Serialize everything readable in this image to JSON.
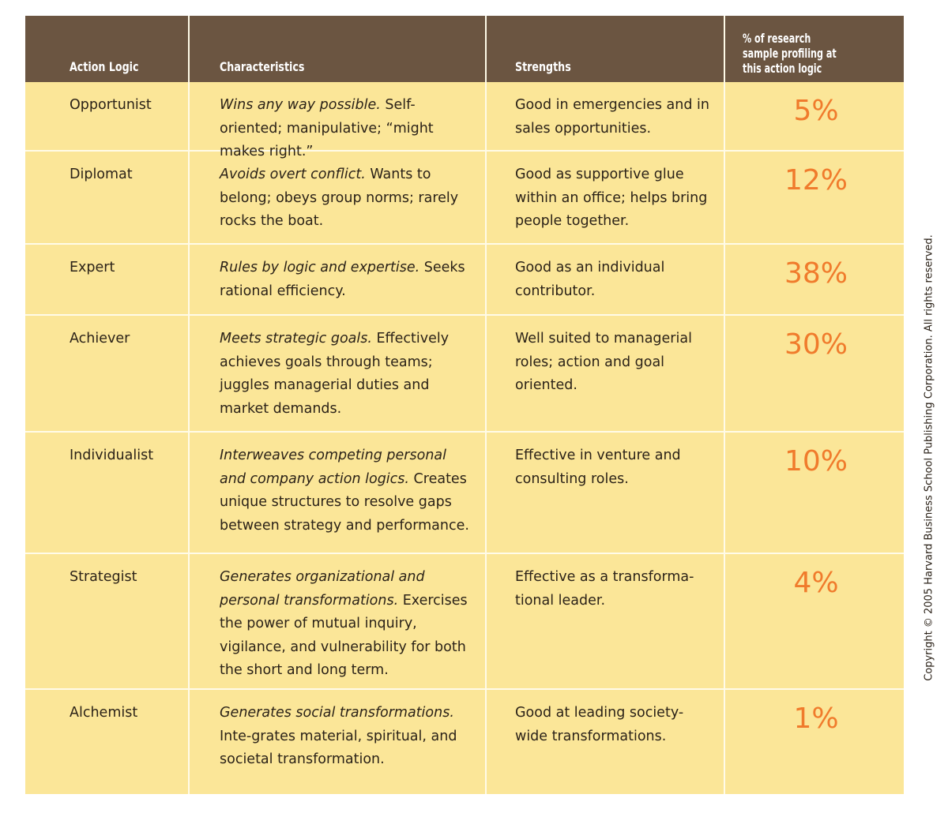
{
  "header": {
    "action_logic": "Action Logic",
    "characteristics": "Characteristics",
    "strengths": "Strengths",
    "percent_lines": [
      "% of research",
      "sample profiling at",
      "this action logic"
    ]
  },
  "rows": [
    {
      "name": "Opportunist",
      "char_italic": "Wins any way possible.",
      "char_rest": " Self-oriented; manipulative; “might makes right.”",
      "strengths": "Good in emergencies and in sales opportunities.",
      "percent": "5%"
    },
    {
      "name": "Diplomat",
      "char_italic": "Avoids overt conflict.",
      "char_rest": " Wants to belong; obeys group norms; rarely rocks the boat.",
      "strengths": "Good as supportive glue within an office; helps bring people together.",
      "percent": "12%"
    },
    {
      "name": "Expert",
      "char_italic": "Rules by logic and expertise.",
      "char_rest": " Seeks rational efficiency.",
      "strengths": "Good as an individual contributor.",
      "percent": "38%"
    },
    {
      "name": "Achiever",
      "char_italic": "Meets strategic goals.",
      "char_rest": " Effectively achieves goals through teams; juggles managerial duties and market demands.",
      "strengths": "Well suited to managerial roles; action and goal oriented.",
      "percent": "30%"
    },
    {
      "name": "Individualist",
      "char_italic": "Interweaves competing personal and company action logics.",
      "char_rest": " Creates unique structures to resolve gaps between strategy and performance.",
      "strengths": "Effective in venture and consulting roles.",
      "percent": "10%"
    },
    {
      "name": "Strategist",
      "char_italic": "Generates organizational and personal transformations.",
      "char_rest": " Exercises the power of mutual inquiry, vigilance, and vulnerability for both the short and long term.",
      "strengths": "Effective as a transforma-tional leader.",
      "percent": "4%"
    },
    {
      "name": "Alchemist",
      "char_italic": "Generates social transformations.",
      "char_rest": " Inte-grates material, spiritual, and societal transformation.",
      "strengths": "Good at leading society-wide transformations.",
      "percent": "1%"
    }
  ],
  "copyright": "Copyright © 2005 Harvard Business School Publishing Corporation. All rights reserved.",
  "colors": {
    "header_bg": "#6b5541",
    "row_bg": "#fbe698",
    "percent": "#f07b2c"
  }
}
